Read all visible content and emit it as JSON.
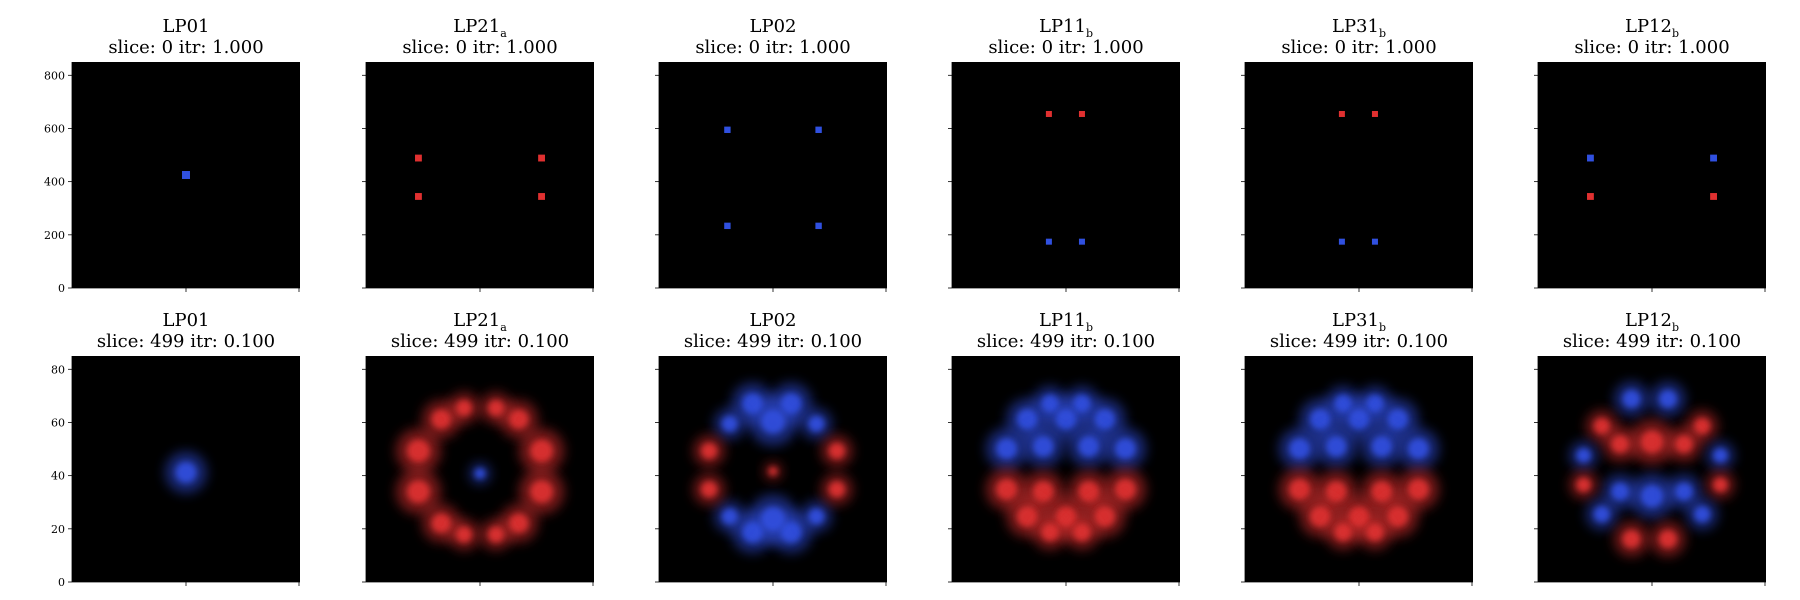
{
  "chart_data": {
    "type": "heatmap",
    "rows": 2,
    "cols": 6,
    "colors": {
      "background": "#000000",
      "positive": "#e03030",
      "negative": "#3050e0"
    },
    "panels": [
      {
        "row": 0,
        "col": 0,
        "title": "LP01",
        "subtitle": "",
        "caption": "slice: 0  itr: 1.000",
        "ylim": [
          0,
          850
        ],
        "yticks": [
          0,
          200,
          400,
          600,
          800
        ],
        "show_yticklabels": true,
        "spots": [
          {
            "x": 0.5,
            "y": 0.5,
            "sign": -1,
            "size": 0.035,
            "blur": 0.0
          }
        ]
      },
      {
        "row": 0,
        "col": 1,
        "title": "LP21",
        "subtitle": "a",
        "caption": "slice: 0  itr: 1.000",
        "ylim": [
          0,
          850
        ],
        "yticks": [
          0,
          200,
          400,
          600,
          800
        ],
        "show_yticklabels": false,
        "spots": [
          {
            "x": 0.23,
            "y": 0.575,
            "sign": 1,
            "size": 0.03,
            "blur": 0
          },
          {
            "x": 0.77,
            "y": 0.575,
            "sign": 1,
            "size": 0.03,
            "blur": 0
          },
          {
            "x": 0.23,
            "y": 0.405,
            "sign": 1,
            "size": 0.03,
            "blur": 0
          },
          {
            "x": 0.77,
            "y": 0.405,
            "sign": 1,
            "size": 0.03,
            "blur": 0
          }
        ]
      },
      {
        "row": 0,
        "col": 2,
        "title": "LP02",
        "subtitle": "",
        "caption": "slice: 0  itr: 1.000",
        "ylim": [
          0,
          850
        ],
        "yticks": [
          0,
          200,
          400,
          600,
          800
        ],
        "show_yticklabels": false,
        "spots": [
          {
            "x": 0.3,
            "y": 0.7,
            "sign": -1,
            "size": 0.028,
            "blur": 0
          },
          {
            "x": 0.7,
            "y": 0.7,
            "sign": -1,
            "size": 0.028,
            "blur": 0
          },
          {
            "x": 0.3,
            "y": 0.275,
            "sign": -1,
            "size": 0.028,
            "blur": 0
          },
          {
            "x": 0.7,
            "y": 0.275,
            "sign": -1,
            "size": 0.028,
            "blur": 0
          }
        ]
      },
      {
        "row": 0,
        "col": 3,
        "title": "LP11",
        "subtitle": "b",
        "caption": "slice: 0  itr: 1.000",
        "ylim": [
          0,
          850
        ],
        "yticks": [
          0,
          200,
          400,
          600,
          800
        ],
        "show_yticklabels": false,
        "spots": [
          {
            "x": 0.425,
            "y": 0.77,
            "sign": 1,
            "size": 0.025,
            "blur": 0
          },
          {
            "x": 0.57,
            "y": 0.77,
            "sign": 1,
            "size": 0.025,
            "blur": 0
          },
          {
            "x": 0.425,
            "y": 0.205,
            "sign": -1,
            "size": 0.025,
            "blur": 0
          },
          {
            "x": 0.57,
            "y": 0.205,
            "sign": -1,
            "size": 0.025,
            "blur": 0
          }
        ]
      },
      {
        "row": 0,
        "col": 4,
        "title": "LP31",
        "subtitle": "b",
        "caption": "slice: 0  itr: 1.000",
        "ylim": [
          0,
          850
        ],
        "yticks": [
          0,
          200,
          400,
          600,
          800
        ],
        "show_yticklabels": false,
        "spots": [
          {
            "x": 0.425,
            "y": 0.77,
            "sign": 1,
            "size": 0.025,
            "blur": 0
          },
          {
            "x": 0.57,
            "y": 0.77,
            "sign": 1,
            "size": 0.025,
            "blur": 0
          },
          {
            "x": 0.425,
            "y": 0.205,
            "sign": -1,
            "size": 0.025,
            "blur": 0
          },
          {
            "x": 0.57,
            "y": 0.205,
            "sign": -1,
            "size": 0.025,
            "blur": 0
          }
        ]
      },
      {
        "row": 0,
        "col": 5,
        "title": "LP12",
        "subtitle": "b",
        "caption": "slice: 0  itr: 1.000",
        "ylim": [
          0,
          850
        ],
        "yticks": [
          0,
          200,
          400,
          600,
          800
        ],
        "show_yticklabels": false,
        "spots": [
          {
            "x": 0.23,
            "y": 0.575,
            "sign": -1,
            "size": 0.03,
            "blur": 0
          },
          {
            "x": 0.77,
            "y": 0.575,
            "sign": -1,
            "size": 0.03,
            "blur": 0
          },
          {
            "x": 0.23,
            "y": 0.405,
            "sign": 1,
            "size": 0.03,
            "blur": 0
          },
          {
            "x": 0.77,
            "y": 0.405,
            "sign": 1,
            "size": 0.03,
            "blur": 0
          }
        ]
      },
      {
        "row": 1,
        "col": 0,
        "title": "LP01",
        "subtitle": "",
        "caption": "slice: 499  itr: 0.100",
        "ylim": [
          0,
          85
        ],
        "yticks": [
          0,
          20,
          40,
          60,
          80
        ],
        "show_yticklabels": true,
        "spots": [
          {
            "x": 0.5,
            "y": 0.485,
            "sign": -1,
            "size": 0.06,
            "blur": 1
          }
        ]
      },
      {
        "row": 1,
        "col": 1,
        "title": "LP21",
        "subtitle": "a",
        "caption": "slice: 499  itr: 0.100",
        "ylim": [
          0,
          85
        ],
        "yticks": [
          0,
          20,
          40,
          60,
          80
        ],
        "show_yticklabels": false,
        "spots": [
          {
            "x": 0.23,
            "y": 0.58,
            "sign": 1,
            "size": 0.065,
            "blur": 1
          },
          {
            "x": 0.23,
            "y": 0.4,
            "sign": 1,
            "size": 0.065,
            "blur": 1
          },
          {
            "x": 0.77,
            "y": 0.58,
            "sign": 1,
            "size": 0.065,
            "blur": 1
          },
          {
            "x": 0.77,
            "y": 0.4,
            "sign": 1,
            "size": 0.065,
            "blur": 1
          },
          {
            "x": 0.33,
            "y": 0.72,
            "sign": 1,
            "size": 0.055,
            "blur": 1
          },
          {
            "x": 0.67,
            "y": 0.72,
            "sign": 1,
            "size": 0.055,
            "blur": 1
          },
          {
            "x": 0.33,
            "y": 0.26,
            "sign": 1,
            "size": 0.055,
            "blur": 1
          },
          {
            "x": 0.67,
            "y": 0.26,
            "sign": 1,
            "size": 0.055,
            "blur": 1
          },
          {
            "x": 0.43,
            "y": 0.77,
            "sign": 1,
            "size": 0.045,
            "blur": 1
          },
          {
            "x": 0.57,
            "y": 0.77,
            "sign": 1,
            "size": 0.045,
            "blur": 1
          },
          {
            "x": 0.43,
            "y": 0.21,
            "sign": 1,
            "size": 0.045,
            "blur": 1
          },
          {
            "x": 0.57,
            "y": 0.21,
            "sign": 1,
            "size": 0.045,
            "blur": 1
          },
          {
            "x": 0.5,
            "y": 0.48,
            "sign": -1,
            "size": 0.03,
            "blur": 1
          }
        ]
      },
      {
        "row": 1,
        "col": 2,
        "title": "LP02",
        "subtitle": "",
        "caption": "slice: 499  itr: 0.100",
        "ylim": [
          0,
          85
        ],
        "yticks": [
          0,
          20,
          40,
          60,
          80
        ],
        "show_yticklabels": false,
        "spots": [
          {
            "x": 0.41,
            "y": 0.79,
            "sign": -1,
            "size": 0.06,
            "blur": 1
          },
          {
            "x": 0.58,
            "y": 0.79,
            "sign": -1,
            "size": 0.06,
            "blur": 1
          },
          {
            "x": 0.5,
            "y": 0.71,
            "sign": -1,
            "size": 0.07,
            "blur": 1
          },
          {
            "x": 0.31,
            "y": 0.7,
            "sign": -1,
            "size": 0.045,
            "blur": 1
          },
          {
            "x": 0.69,
            "y": 0.7,
            "sign": -1,
            "size": 0.045,
            "blur": 1
          },
          {
            "x": 0.41,
            "y": 0.22,
            "sign": -1,
            "size": 0.06,
            "blur": 1
          },
          {
            "x": 0.58,
            "y": 0.22,
            "sign": -1,
            "size": 0.06,
            "blur": 1
          },
          {
            "x": 0.5,
            "y": 0.28,
            "sign": -1,
            "size": 0.07,
            "blur": 1
          },
          {
            "x": 0.31,
            "y": 0.29,
            "sign": -1,
            "size": 0.045,
            "blur": 1
          },
          {
            "x": 0.69,
            "y": 0.29,
            "sign": -1,
            "size": 0.045,
            "blur": 1
          },
          {
            "x": 0.22,
            "y": 0.58,
            "sign": 1,
            "size": 0.045,
            "blur": 1
          },
          {
            "x": 0.22,
            "y": 0.41,
            "sign": 1,
            "size": 0.045,
            "blur": 1
          },
          {
            "x": 0.78,
            "y": 0.58,
            "sign": 1,
            "size": 0.045,
            "blur": 1
          },
          {
            "x": 0.78,
            "y": 0.41,
            "sign": 1,
            "size": 0.045,
            "blur": 1
          },
          {
            "x": 0.5,
            "y": 0.49,
            "sign": 1,
            "size": 0.025,
            "blur": 1
          }
        ]
      },
      {
        "row": 1,
        "col": 3,
        "title": "LP11",
        "subtitle": "b",
        "caption": "slice: 499  itr: 0.100",
        "ylim": [
          0,
          85
        ],
        "yticks": [
          0,
          20,
          40,
          60,
          80
        ],
        "show_yticklabels": false,
        "spots": [
          {
            "x": 0.43,
            "y": 0.79,
            "sign": -1,
            "size": 0.05,
            "blur": 1
          },
          {
            "x": 0.57,
            "y": 0.79,
            "sign": -1,
            "size": 0.05,
            "blur": 1
          },
          {
            "x": 0.33,
            "y": 0.72,
            "sign": -1,
            "size": 0.06,
            "blur": 1
          },
          {
            "x": 0.5,
            "y": 0.72,
            "sign": -1,
            "size": 0.06,
            "blur": 1
          },
          {
            "x": 0.67,
            "y": 0.72,
            "sign": -1,
            "size": 0.06,
            "blur": 1
          },
          {
            "x": 0.24,
            "y": 0.59,
            "sign": -1,
            "size": 0.06,
            "blur": 1
          },
          {
            "x": 0.4,
            "y": 0.6,
            "sign": -1,
            "size": 0.06,
            "blur": 1
          },
          {
            "x": 0.6,
            "y": 0.6,
            "sign": -1,
            "size": 0.06,
            "blur": 1
          },
          {
            "x": 0.76,
            "y": 0.59,
            "sign": -1,
            "size": 0.06,
            "blur": 1
          },
          {
            "x": 0.24,
            "y": 0.41,
            "sign": 1,
            "size": 0.06,
            "blur": 1
          },
          {
            "x": 0.4,
            "y": 0.4,
            "sign": 1,
            "size": 0.06,
            "blur": 1
          },
          {
            "x": 0.6,
            "y": 0.4,
            "sign": 1,
            "size": 0.06,
            "blur": 1
          },
          {
            "x": 0.76,
            "y": 0.41,
            "sign": 1,
            "size": 0.06,
            "blur": 1
          },
          {
            "x": 0.33,
            "y": 0.29,
            "sign": 1,
            "size": 0.06,
            "blur": 1
          },
          {
            "x": 0.5,
            "y": 0.29,
            "sign": 1,
            "size": 0.06,
            "blur": 1
          },
          {
            "x": 0.67,
            "y": 0.29,
            "sign": 1,
            "size": 0.06,
            "blur": 1
          },
          {
            "x": 0.43,
            "y": 0.22,
            "sign": 1,
            "size": 0.05,
            "blur": 1
          },
          {
            "x": 0.57,
            "y": 0.22,
            "sign": 1,
            "size": 0.05,
            "blur": 1
          }
        ]
      },
      {
        "row": 1,
        "col": 4,
        "title": "LP31",
        "subtitle": "b",
        "caption": "slice: 499  itr: 0.100",
        "ylim": [
          0,
          85
        ],
        "yticks": [
          0,
          20,
          40,
          60,
          80
        ],
        "show_yticklabels": false,
        "spots": [
          {
            "x": 0.43,
            "y": 0.79,
            "sign": -1,
            "size": 0.05,
            "blur": 1
          },
          {
            "x": 0.57,
            "y": 0.79,
            "sign": -1,
            "size": 0.05,
            "blur": 1
          },
          {
            "x": 0.33,
            "y": 0.72,
            "sign": -1,
            "size": 0.06,
            "blur": 1
          },
          {
            "x": 0.5,
            "y": 0.72,
            "sign": -1,
            "size": 0.06,
            "blur": 1
          },
          {
            "x": 0.67,
            "y": 0.72,
            "sign": -1,
            "size": 0.06,
            "blur": 1
          },
          {
            "x": 0.24,
            "y": 0.59,
            "sign": -1,
            "size": 0.06,
            "blur": 1
          },
          {
            "x": 0.4,
            "y": 0.6,
            "sign": -1,
            "size": 0.06,
            "blur": 1
          },
          {
            "x": 0.6,
            "y": 0.6,
            "sign": -1,
            "size": 0.06,
            "blur": 1
          },
          {
            "x": 0.76,
            "y": 0.59,
            "sign": -1,
            "size": 0.06,
            "blur": 1
          },
          {
            "x": 0.24,
            "y": 0.41,
            "sign": 1,
            "size": 0.06,
            "blur": 1
          },
          {
            "x": 0.4,
            "y": 0.4,
            "sign": 1,
            "size": 0.06,
            "blur": 1
          },
          {
            "x": 0.6,
            "y": 0.4,
            "sign": 1,
            "size": 0.06,
            "blur": 1
          },
          {
            "x": 0.76,
            "y": 0.41,
            "sign": 1,
            "size": 0.06,
            "blur": 1
          },
          {
            "x": 0.33,
            "y": 0.29,
            "sign": 1,
            "size": 0.06,
            "blur": 1
          },
          {
            "x": 0.5,
            "y": 0.29,
            "sign": 1,
            "size": 0.06,
            "blur": 1
          },
          {
            "x": 0.67,
            "y": 0.29,
            "sign": 1,
            "size": 0.06,
            "blur": 1
          },
          {
            "x": 0.43,
            "y": 0.22,
            "sign": 1,
            "size": 0.05,
            "blur": 1
          },
          {
            "x": 0.57,
            "y": 0.22,
            "sign": 1,
            "size": 0.05,
            "blur": 1
          }
        ]
      },
      {
        "row": 1,
        "col": 5,
        "title": "LP12",
        "subtitle": "b",
        "caption": "slice: 499  itr: 0.100",
        "ylim": [
          0,
          85
        ],
        "yticks": [
          0,
          20,
          40,
          60,
          80
        ],
        "show_yticklabels": false,
        "spots": [
          {
            "x": 0.41,
            "y": 0.81,
            "sign": -1,
            "size": 0.05,
            "blur": 1
          },
          {
            "x": 0.57,
            "y": 0.81,
            "sign": -1,
            "size": 0.05,
            "blur": 1
          },
          {
            "x": 0.28,
            "y": 0.69,
            "sign": 1,
            "size": 0.045,
            "blur": 1
          },
          {
            "x": 0.72,
            "y": 0.69,
            "sign": 1,
            "size": 0.045,
            "blur": 1
          },
          {
            "x": 0.5,
            "y": 0.62,
            "sign": 1,
            "size": 0.065,
            "blur": 1
          },
          {
            "x": 0.36,
            "y": 0.61,
            "sign": 1,
            "size": 0.05,
            "blur": 1
          },
          {
            "x": 0.64,
            "y": 0.61,
            "sign": 1,
            "size": 0.05,
            "blur": 1
          },
          {
            "x": 0.2,
            "y": 0.56,
            "sign": -1,
            "size": 0.04,
            "blur": 1
          },
          {
            "x": 0.8,
            "y": 0.56,
            "sign": -1,
            "size": 0.04,
            "blur": 1
          },
          {
            "x": 0.5,
            "y": 0.38,
            "sign": -1,
            "size": 0.065,
            "blur": 1
          },
          {
            "x": 0.36,
            "y": 0.4,
            "sign": -1,
            "size": 0.05,
            "blur": 1
          },
          {
            "x": 0.64,
            "y": 0.4,
            "sign": -1,
            "size": 0.05,
            "blur": 1
          },
          {
            "x": 0.2,
            "y": 0.43,
            "sign": 1,
            "size": 0.04,
            "blur": 1
          },
          {
            "x": 0.8,
            "y": 0.43,
            "sign": 1,
            "size": 0.04,
            "blur": 1
          },
          {
            "x": 0.28,
            "y": 0.3,
            "sign": -1,
            "size": 0.045,
            "blur": 1
          },
          {
            "x": 0.72,
            "y": 0.3,
            "sign": -1,
            "size": 0.045,
            "blur": 1
          },
          {
            "x": 0.41,
            "y": 0.19,
            "sign": 1,
            "size": 0.05,
            "blur": 1
          },
          {
            "x": 0.57,
            "y": 0.19,
            "sign": 1,
            "size": 0.05,
            "blur": 1
          }
        ]
      }
    ]
  }
}
